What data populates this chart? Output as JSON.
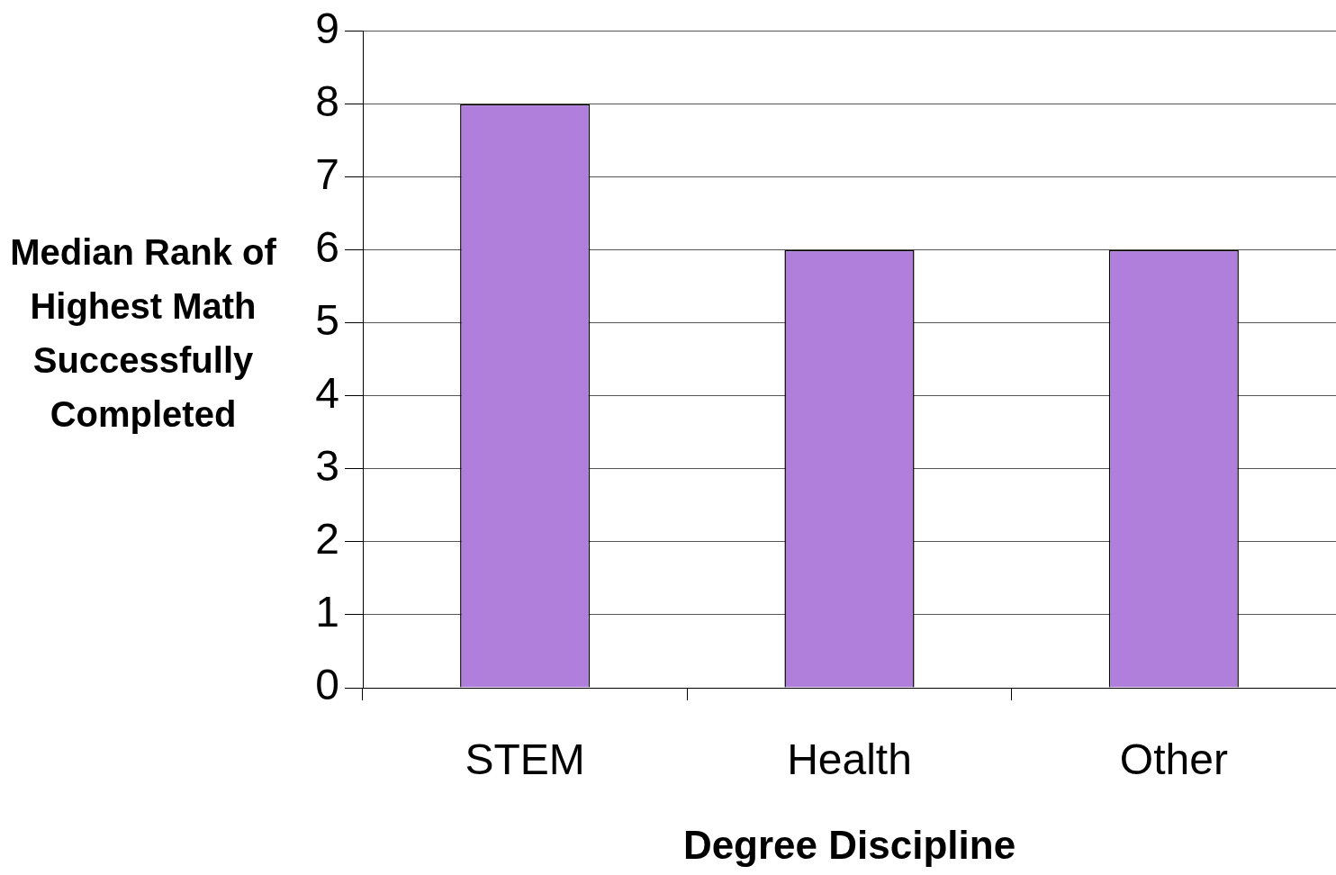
{
  "chart_data": {
    "type": "bar",
    "xlabel": "Degree Discipline",
    "ylabel": "Median Rank of Highest Math Successfully Completed",
    "categories": [
      "STEM",
      "Health",
      "Other"
    ],
    "values": [
      8,
      6,
      6
    ],
    "color": "#b07fdc",
    "ylim": [
      0,
      9
    ],
    "yticks": [
      0,
      1,
      2,
      3,
      4,
      5,
      6,
      7,
      8,
      9
    ],
    "grid": "y"
  }
}
